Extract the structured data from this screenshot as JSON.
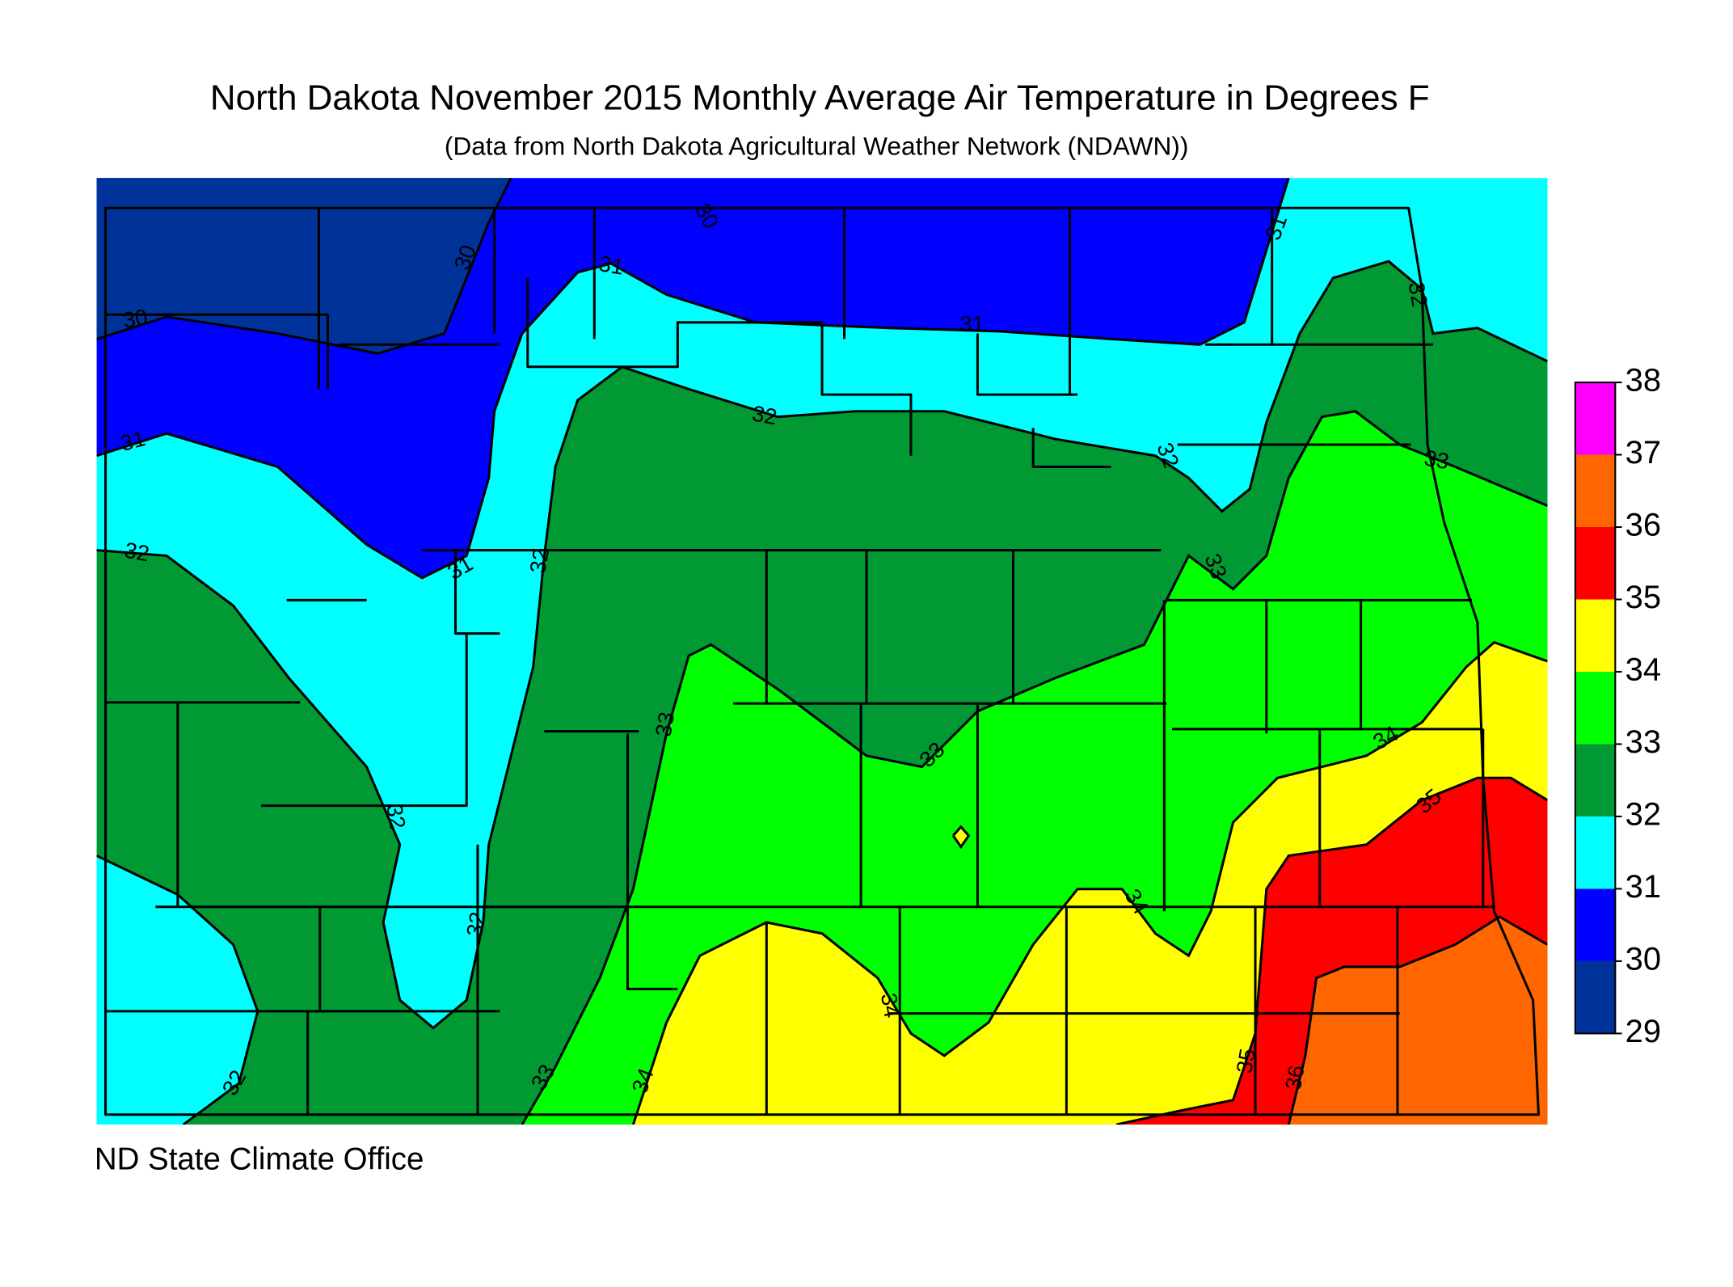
{
  "title": "North Dakota November 2015 Monthly Average Air Temperature in Degrees F",
  "subtitle": "(Data from North Dakota Agricultural Weather Network (NDAWN))",
  "credit": "ND State Climate Office",
  "legend": {
    "ticks": [
      29,
      30,
      31,
      32,
      33,
      34,
      35,
      36,
      37,
      38
    ],
    "colors": [
      "#003399",
      "#0000ff",
      "#00ffff",
      "#009933",
      "#00ff00",
      "#ffff00",
      "#ff0000",
      "#ff6600",
      "#ff00ff"
    ]
  },
  "contour_labels": [
    30,
    30,
    30,
    31,
    31,
    31,
    31,
    31,
    32,
    32,
    32,
    32,
    32,
    33,
    33,
    33,
    33,
    33,
    32,
    32,
    32,
    34,
    34,
    34,
    34,
    35,
    35,
    36
  ]
}
